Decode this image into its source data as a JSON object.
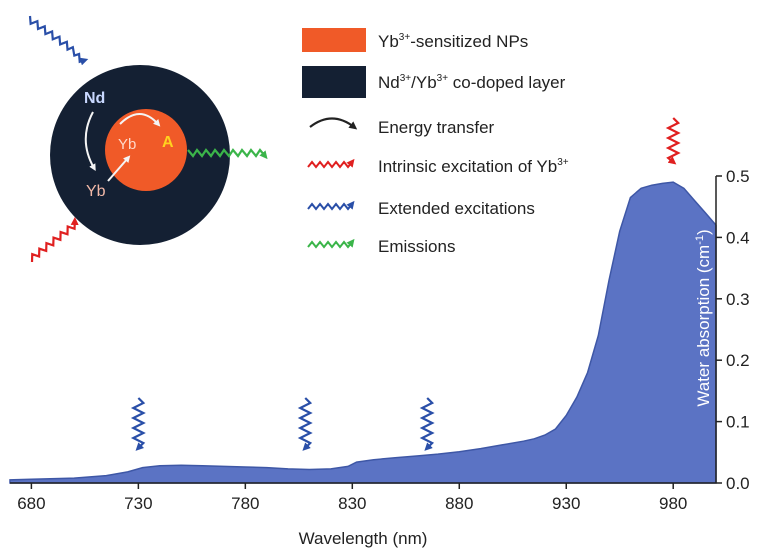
{
  "chart_data": {
    "type": "area",
    "xlabel": "Wavelength (nm)",
    "ylabel": "Water absorption (cm",
    "ylabel_sup": "-1",
    "ylabel_close": ")",
    "xlim": [
      670,
      1000
    ],
    "ylim": [
      0,
      0.5
    ],
    "x_ticks": [
      "680",
      "730",
      "780",
      "830",
      "880",
      "930",
      "980"
    ],
    "x_tick_values": [
      680,
      730,
      780,
      830,
      880,
      930,
      980
    ],
    "y_ticks": [
      "0.0",
      "0.1",
      "0.2",
      "0.3",
      "0.4",
      "0.5"
    ],
    "y_tick_values": [
      0.0,
      0.1,
      0.2,
      0.3,
      0.4,
      0.5
    ],
    "grid": false,
    "fill_color": "#5b73c4",
    "x": [
      670,
      680,
      700,
      715,
      725,
      732,
      740,
      750,
      760,
      770,
      780,
      790,
      800,
      810,
      820,
      828,
      832,
      840,
      850,
      860,
      870,
      880,
      890,
      900,
      910,
      915,
      920,
      925,
      930,
      935,
      940,
      945,
      950,
      955,
      960,
      965,
      970,
      975,
      980,
      985,
      990,
      995,
      1000
    ],
    "y": [
      0.005,
      0.006,
      0.008,
      0.012,
      0.018,
      0.025,
      0.028,
      0.029,
      0.028,
      0.027,
      0.026,
      0.025,
      0.023,
      0.022,
      0.023,
      0.027,
      0.034,
      0.038,
      0.041,
      0.044,
      0.047,
      0.051,
      0.056,
      0.062,
      0.068,
      0.072,
      0.078,
      0.088,
      0.11,
      0.14,
      0.18,
      0.24,
      0.33,
      0.41,
      0.465,
      0.48,
      0.485,
      0.488,
      0.49,
      0.48,
      0.46,
      0.44,
      0.42
    ],
    "extended_excitation_arrows_nm": [
      730,
      808,
      865
    ],
    "intrinsic_excitation_arrow_nm": 980,
    "legend": [
      {
        "key": "yb-sensitized",
        "text": "Yb",
        "sup": "3+",
        "rest": "-sensitized NPs",
        "color": "#f05a28"
      },
      {
        "key": "nd-yb-layer",
        "text": "Nd",
        "sup": "3+",
        "mid": "/Yb",
        "sup2": "3+",
        "rest": " co-doped layer",
        "color": "#142033"
      },
      {
        "key": "energy-transfer",
        "text": "Energy transfer",
        "color": "#222222"
      },
      {
        "key": "intrinsic",
        "text": "Intrinsic excitation of Yb",
        "sup": "3+",
        "color": "#e02020"
      },
      {
        "key": "extended",
        "text": "Extended excitations",
        "color": "#2a4fa8"
      },
      {
        "key": "emissions",
        "text": "Emissions",
        "color": "#3bb54a"
      }
    ]
  },
  "schematic": {
    "nd_label": "Nd",
    "yb_shell_label": "Yb",
    "yb_core_label": "Yb",
    "a_label": "A",
    "core_color": "#f05a28",
    "shell_color": "#142033",
    "a_color": "#ffd21f"
  }
}
